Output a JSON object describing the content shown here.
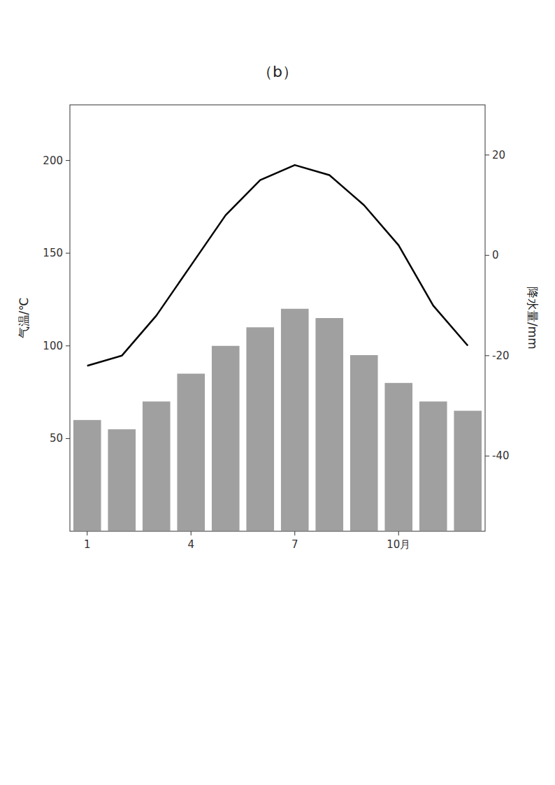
{
  "chart_data": {
    "type": "bar",
    "title": "（b）",
    "x": [
      1,
      2,
      3,
      4,
      5,
      6,
      7,
      8,
      9,
      10,
      11,
      12
    ],
    "xlim": [
      0.5,
      12.5
    ],
    "xticks": [
      1,
      4,
      7,
      {
        "value": 10,
        "label": "10月"
      }
    ],
    "ylim": [
      0,
      230
    ],
    "yticks": [
      50,
      100,
      150,
      200
    ],
    "y2lim": [
      -55,
      30
    ],
    "y2ticks": [
      -40,
      -20,
      0,
      20
    ],
    "ylabel": "气温/℃",
    "y2label": "降水量/mm",
    "grid": false,
    "series": [
      {
        "type": "bar",
        "color": "#888888",
        "values": [
          60,
          55,
          70,
          85,
          100,
          110,
          120,
          115,
          95,
          80,
          70,
          65
        ]
      },
      {
        "type": "line",
        "axis": "y2",
        "color": "#000000",
        "values": [
          -22,
          -20,
          -12,
          -2,
          8,
          15,
          18,
          16,
          10,
          2,
          -10,
          -18
        ]
      }
    ]
  }
}
